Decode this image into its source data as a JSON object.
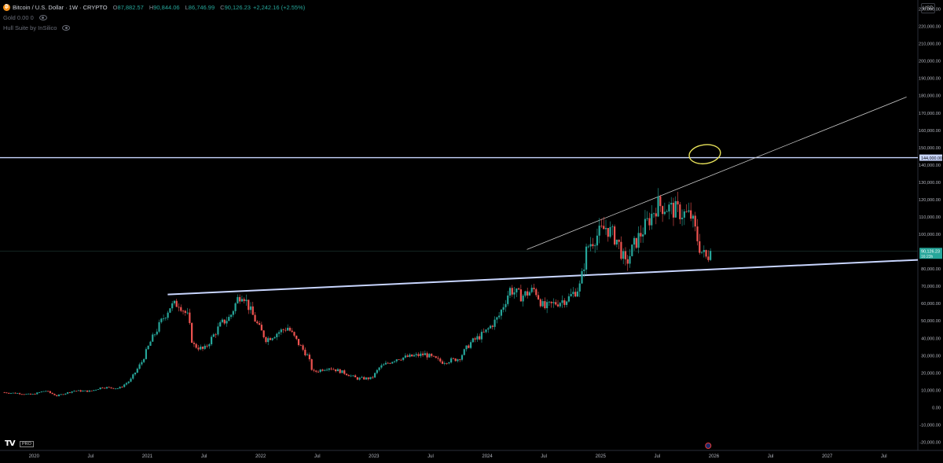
{
  "header": {
    "symbol": "Bitcoin / U.S. Dollar · 1W · CRYPTO",
    "ohlc": {
      "o_label": "O",
      "o": "87,882.57",
      "h_label": "H",
      "h": "90,844.06",
      "l_label": "L",
      "l": "86,746.99",
      "c_label": "C",
      "c": "90,126.23",
      "change": "+2,242.16 (+2.55%)"
    },
    "indicator1": "Gold 0.00 0",
    "indicator2": "Hull Suite by InSilico"
  },
  "currency": "USD",
  "logo": {
    "mark": "TV",
    "badge": "PRO"
  },
  "colors": {
    "up": "#26a69a",
    "down": "#ef5350",
    "trend": "#c9d6ff",
    "annotation": "#e8e25a",
    "coin": "#f7931a"
  },
  "price_label": "90,126.23",
  "price_label_sub": "16:23h",
  "level_label": "144,000.00",
  "chart_data": {
    "type": "candlestick",
    "yaxis_ticks": [
      -20000,
      -10000,
      0,
      10000,
      20000,
      30000,
      40000,
      50000,
      60000,
      70000,
      80000,
      90000,
      100000,
      110000,
      120000,
      130000,
      140000,
      150000,
      160000,
      170000,
      180000,
      190000,
      200000,
      210000,
      220000,
      230000
    ],
    "yaxis_labels": [
      "-20,000.00",
      "-10,000.00",
      "0.00",
      "10,000.00",
      "20,000.00",
      "30,000.00",
      "40,000.00",
      "50,000.00",
      "60,000.00",
      "70,000.00",
      "80,000.00",
      "90,000.00",
      "100,000.00",
      "110,000.00",
      "120,000.00",
      "130,000.00",
      "140,000.00",
      "150,000.00",
      "160,000.00",
      "170,000.00",
      "180,000.00",
      "190,000.00",
      "200,000.00",
      "210,000.00",
      "220,000.00",
      "230,000.00"
    ],
    "xaxis_labels": [
      "2020",
      "Jul",
      "2021",
      "Jul",
      "2022",
      "Jul",
      "2023",
      "Jul",
      "2024",
      "Jul",
      "2025",
      "Jul",
      "2026",
      "Jul",
      "2027",
      "Jul"
    ],
    "xaxis_positions": [
      2020.0,
      2020.5,
      2021.0,
      2021.5,
      2022.0,
      2022.5,
      2023.0,
      2023.5,
      2024.0,
      2024.5,
      2025.0,
      2025.5,
      2026.0,
      2026.5,
      2027.0,
      2027.5
    ],
    "ylim": [
      -25000,
      235000
    ],
    "xlim": [
      2019.7,
      2027.8
    ],
    "close_path": [
      [
        2019.72,
        8500
      ],
      [
        2019.85,
        8000
      ],
      [
        2019.98,
        7200
      ],
      [
        2020.1,
        9500
      ],
      [
        2020.2,
        6500
      ],
      [
        2020.35,
        9400
      ],
      [
        2020.5,
        9200
      ],
      [
        2020.6,
        11500
      ],
      [
        2020.75,
        10800
      ],
      [
        2020.85,
        15500
      ],
      [
        2020.95,
        26000
      ],
      [
        2021.03,
        38000
      ],
      [
        2021.12,
        49000
      ],
      [
        2021.2,
        58000
      ],
      [
        2021.28,
        60000
      ],
      [
        2021.36,
        52000
      ],
      [
        2021.4,
        36000
      ],
      [
        2021.5,
        33000
      ],
      [
        2021.57,
        40000
      ],
      [
        2021.65,
        48000
      ],
      [
        2021.73,
        52000
      ],
      [
        2021.8,
        63000
      ],
      [
        2021.84,
        66000
      ],
      [
        2021.9,
        57000
      ],
      [
        2021.98,
        46500
      ],
      [
        2022.05,
        39000
      ],
      [
        2022.15,
        43000
      ],
      [
        2022.24,
        46000
      ],
      [
        2022.32,
        38000
      ],
      [
        2022.42,
        29000
      ],
      [
        2022.46,
        20000
      ],
      [
        2022.6,
        23000
      ],
      [
        2022.75,
        19500
      ],
      [
        2022.85,
        16500
      ],
      [
        2022.98,
        16600
      ],
      [
        2023.05,
        23000
      ],
      [
        2023.2,
        28000
      ],
      [
        2023.3,
        29000
      ],
      [
        2023.45,
        30500
      ],
      [
        2023.6,
        26000
      ],
      [
        2023.75,
        28000
      ],
      [
        2023.85,
        37000
      ],
      [
        2023.98,
        43000
      ],
      [
        2024.1,
        52000
      ],
      [
        2024.2,
        68000
      ],
      [
        2024.3,
        64000
      ],
      [
        2024.42,
        68000
      ],
      [
        2024.5,
        57000
      ],
      [
        2024.6,
        60000
      ],
      [
        2024.72,
        63000
      ],
      [
        2024.82,
        70000
      ],
      [
        2024.88,
        92000
      ],
      [
        2024.95,
        98000
      ],
      [
        2025.05,
        104000
      ],
      [
        2025.15,
        96000
      ],
      [
        2025.22,
        82000
      ],
      [
        2025.3,
        94000
      ],
      [
        2025.4,
        105000
      ],
      [
        2025.5,
        117000
      ],
      [
        2025.6,
        115000
      ],
      [
        2025.72,
        112000
      ],
      [
        2025.8,
        110000
      ],
      [
        2025.88,
        91000
      ],
      [
        2025.93,
        86000
      ],
      [
        2025.98,
        90126
      ]
    ],
    "last_close": 90126.23,
    "horizontal_level": 144000,
    "trend_lines": [
      {
        "from": [
          2021.18,
          65000
        ],
        "to": [
          2027.8,
          85000
        ],
        "role": "support"
      },
      {
        "from": [
          2024.35,
          91000
        ],
        "to": [
          2027.7,
          179000
        ],
        "role": "resistance"
      }
    ],
    "annotation": {
      "type": "ellipse",
      "center": [
        2025.92,
        146000
      ]
    }
  }
}
